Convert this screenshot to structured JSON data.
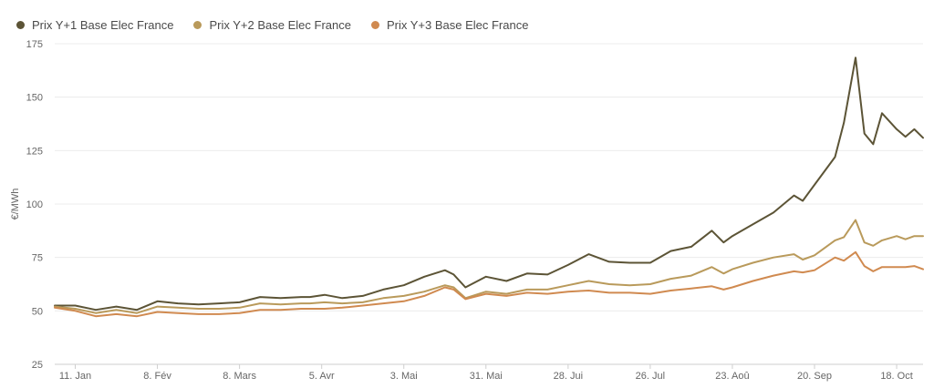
{
  "chart_data": {
    "type": "line",
    "title": "",
    "xlabel": "",
    "ylabel": "€/MWh",
    "ylim": [
      25,
      175
    ],
    "yticks": [
      25,
      50,
      75,
      100,
      125,
      150,
      175
    ],
    "x_tick_labels": [
      "11. Jan",
      "8. Fév",
      "8. Mars",
      "5. Avr",
      "3. Mai",
      "31. Mai",
      "28. Jui",
      "26. Jul",
      "23. Aoû",
      "20. Sep",
      "18. Oct"
    ],
    "x_tick_dates": [
      "2021-01-11",
      "2021-02-08",
      "2021-03-08",
      "2021-04-05",
      "2021-05-03",
      "2021-05-31",
      "2021-06-28",
      "2021-07-26",
      "2021-08-23",
      "2021-09-20",
      "2021-10-18"
    ],
    "x_range": [
      "2021-01-04",
      "2021-10-27"
    ],
    "grid": "horizontal",
    "legend_position": "top-left",
    "series": [
      {
        "name": "Prix Y+1 Base Elec France",
        "color": "#5c5436",
        "points": [
          [
            "2021-01-04",
            52.5
          ],
          [
            "2021-01-11",
            52.5
          ],
          [
            "2021-01-18",
            50.5
          ],
          [
            "2021-01-25",
            52.0
          ],
          [
            "2021-02-01",
            50.5
          ],
          [
            "2021-02-08",
            54.5
          ],
          [
            "2021-02-15",
            53.5
          ],
          [
            "2021-02-22",
            53.0
          ],
          [
            "2021-03-01",
            53.5
          ],
          [
            "2021-03-08",
            54.0
          ],
          [
            "2021-03-15",
            56.5
          ],
          [
            "2021-03-22",
            56.0
          ],
          [
            "2021-03-29",
            56.5
          ],
          [
            "2021-04-01",
            56.5
          ],
          [
            "2021-04-06",
            57.5
          ],
          [
            "2021-04-12",
            56.0
          ],
          [
            "2021-04-19",
            57.0
          ],
          [
            "2021-04-26",
            60.0
          ],
          [
            "2021-05-03",
            62.0
          ],
          [
            "2021-05-10",
            66.0
          ],
          [
            "2021-05-17",
            69.0
          ],
          [
            "2021-05-20",
            67.0
          ],
          [
            "2021-05-24",
            61.0
          ],
          [
            "2021-05-31",
            66.0
          ],
          [
            "2021-06-07",
            64.0
          ],
          [
            "2021-06-14",
            67.5
          ],
          [
            "2021-06-21",
            67.0
          ],
          [
            "2021-06-28",
            71.5
          ],
          [
            "2021-07-05",
            76.5
          ],
          [
            "2021-07-12",
            73.0
          ],
          [
            "2021-07-19",
            72.5
          ],
          [
            "2021-07-26",
            72.5
          ],
          [
            "2021-08-02",
            78.0
          ],
          [
            "2021-08-09",
            80.0
          ],
          [
            "2021-08-16",
            87.5
          ],
          [
            "2021-08-20",
            82.0
          ],
          [
            "2021-08-23",
            85.0
          ],
          [
            "2021-08-30",
            90.5
          ],
          [
            "2021-09-06",
            96.0
          ],
          [
            "2021-09-13",
            104.0
          ],
          [
            "2021-09-16",
            101.5
          ],
          [
            "2021-09-20",
            109.0
          ],
          [
            "2021-09-27",
            122.0
          ],
          [
            "2021-09-30",
            138.0
          ],
          [
            "2021-10-04",
            168.5
          ],
          [
            "2021-10-07",
            133.0
          ],
          [
            "2021-10-10",
            128.0
          ],
          [
            "2021-10-13",
            142.5
          ],
          [
            "2021-10-18",
            135.0
          ],
          [
            "2021-10-21",
            131.5
          ],
          [
            "2021-10-24",
            135.0
          ],
          [
            "2021-10-27",
            131.0
          ]
        ]
      },
      {
        "name": "Prix Y+2 Base Elec France",
        "color": "#b99a5b",
        "points": [
          [
            "2021-01-04",
            52.0
          ],
          [
            "2021-01-11",
            51.0
          ],
          [
            "2021-01-18",
            49.0
          ],
          [
            "2021-01-25",
            50.5
          ],
          [
            "2021-02-01",
            49.0
          ],
          [
            "2021-02-08",
            52.0
          ],
          [
            "2021-02-15",
            51.5
          ],
          [
            "2021-02-22",
            51.0
          ],
          [
            "2021-03-01",
            51.0
          ],
          [
            "2021-03-08",
            51.5
          ],
          [
            "2021-03-15",
            53.5
          ],
          [
            "2021-03-22",
            53.0
          ],
          [
            "2021-03-29",
            53.5
          ],
          [
            "2021-04-01",
            53.5
          ],
          [
            "2021-04-06",
            54.0
          ],
          [
            "2021-04-12",
            53.5
          ],
          [
            "2021-04-19",
            54.0
          ],
          [
            "2021-04-26",
            56.0
          ],
          [
            "2021-05-03",
            57.0
          ],
          [
            "2021-05-10",
            59.0
          ],
          [
            "2021-05-17",
            62.0
          ],
          [
            "2021-05-20",
            61.0
          ],
          [
            "2021-05-24",
            56.0
          ],
          [
            "2021-05-31",
            59.0
          ],
          [
            "2021-06-07",
            58.0
          ],
          [
            "2021-06-14",
            60.0
          ],
          [
            "2021-06-21",
            60.0
          ],
          [
            "2021-06-28",
            62.0
          ],
          [
            "2021-07-05",
            64.0
          ],
          [
            "2021-07-12",
            62.5
          ],
          [
            "2021-07-19",
            62.0
          ],
          [
            "2021-07-26",
            62.5
          ],
          [
            "2021-08-02",
            65.0
          ],
          [
            "2021-08-09",
            66.5
          ],
          [
            "2021-08-16",
            70.5
          ],
          [
            "2021-08-20",
            67.5
          ],
          [
            "2021-08-23",
            69.5
          ],
          [
            "2021-08-30",
            72.5
          ],
          [
            "2021-09-06",
            75.0
          ],
          [
            "2021-09-13",
            76.5
          ],
          [
            "2021-09-16",
            74.0
          ],
          [
            "2021-09-20",
            76.0
          ],
          [
            "2021-09-27",
            83.0
          ],
          [
            "2021-09-30",
            84.5
          ],
          [
            "2021-10-04",
            92.5
          ],
          [
            "2021-10-07",
            82.0
          ],
          [
            "2021-10-10",
            80.5
          ],
          [
            "2021-10-13",
            83.0
          ],
          [
            "2021-10-18",
            85.0
          ],
          [
            "2021-10-21",
            83.5
          ],
          [
            "2021-10-24",
            85.0
          ],
          [
            "2021-10-27",
            85.0
          ]
        ]
      },
      {
        "name": "Prix Y+3 Base Elec France",
        "color": "#d08a50",
        "points": [
          [
            "2021-01-04",
            51.5
          ],
          [
            "2021-01-11",
            50.0
          ],
          [
            "2021-01-18",
            47.5
          ],
          [
            "2021-01-25",
            48.5
          ],
          [
            "2021-02-01",
            47.5
          ],
          [
            "2021-02-08",
            49.5
          ],
          [
            "2021-02-15",
            49.0
          ],
          [
            "2021-02-22",
            48.5
          ],
          [
            "2021-03-01",
            48.5
          ],
          [
            "2021-03-08",
            49.0
          ],
          [
            "2021-03-15",
            50.5
          ],
          [
            "2021-03-22",
            50.5
          ],
          [
            "2021-03-29",
            51.0
          ],
          [
            "2021-04-01",
            51.0
          ],
          [
            "2021-04-06",
            51.0
          ],
          [
            "2021-04-12",
            51.5
          ],
          [
            "2021-04-19",
            52.5
          ],
          [
            "2021-04-26",
            53.5
          ],
          [
            "2021-05-03",
            54.5
          ],
          [
            "2021-05-10",
            57.0
          ],
          [
            "2021-05-17",
            61.0
          ],
          [
            "2021-05-20",
            60.0
          ],
          [
            "2021-05-24",
            55.5
          ],
          [
            "2021-05-31",
            58.0
          ],
          [
            "2021-06-07",
            57.0
          ],
          [
            "2021-06-14",
            58.5
          ],
          [
            "2021-06-21",
            58.0
          ],
          [
            "2021-06-28",
            59.0
          ],
          [
            "2021-07-05",
            59.5
          ],
          [
            "2021-07-12",
            58.5
          ],
          [
            "2021-07-19",
            58.5
          ],
          [
            "2021-07-26",
            58.0
          ],
          [
            "2021-08-02",
            59.5
          ],
          [
            "2021-08-09",
            60.5
          ],
          [
            "2021-08-16",
            61.5
          ],
          [
            "2021-08-20",
            60.0
          ],
          [
            "2021-08-23",
            61.0
          ],
          [
            "2021-08-30",
            64.0
          ],
          [
            "2021-09-06",
            66.5
          ],
          [
            "2021-09-13",
            68.5
          ],
          [
            "2021-09-16",
            68.0
          ],
          [
            "2021-09-20",
            69.0
          ],
          [
            "2021-09-27",
            75.0
          ],
          [
            "2021-09-30",
            73.5
          ],
          [
            "2021-10-04",
            77.5
          ],
          [
            "2021-10-07",
            71.0
          ],
          [
            "2021-10-10",
            68.5
          ],
          [
            "2021-10-13",
            70.5
          ],
          [
            "2021-10-18",
            70.5
          ],
          [
            "2021-10-21",
            70.5
          ],
          [
            "2021-10-24",
            71.0
          ],
          [
            "2021-10-27",
            69.5
          ]
        ]
      }
    ]
  }
}
